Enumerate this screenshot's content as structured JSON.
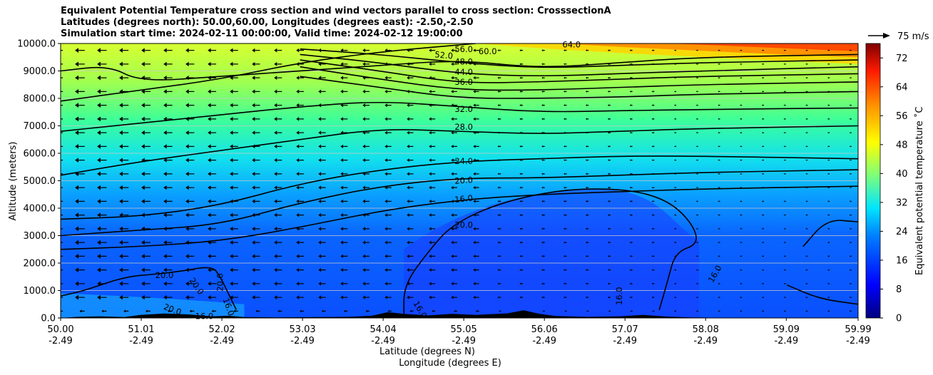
{
  "title_lines": [
    "Equivalent Potential Temperature cross section and wind vectors parallel to cross section: CrosssectionA",
    "Latitudes (degrees north): 50.00,60.00, Longitudes (degrees east): -2.50,-2.50",
    "Simulation start time: 2024-02-11 00:00:00, Valid time: 2024-02-12 19:00:00"
  ],
  "chart_data": {
    "type": "contourf",
    "ylabel": "Altitude (meters)",
    "xlabel_lines": [
      "Latitude (degrees N)",
      "Longitude (degrees E)"
    ],
    "xlim": [
      50.0,
      59.99
    ],
    "ylim": [
      0,
      10000
    ],
    "grid": "horizontal",
    "x_ticks": [
      {
        "lat": "50.00",
        "lon": "-2.49"
      },
      {
        "lat": "51.01",
        "lon": "-2.49"
      },
      {
        "lat": "52.02",
        "lon": "-2.49"
      },
      {
        "lat": "53.03",
        "lon": "-2.49"
      },
      {
        "lat": "54.04",
        "lon": "-2.49"
      },
      {
        "lat": "55.05",
        "lon": "-2.49"
      },
      {
        "lat": "56.06",
        "lon": "-2.49"
      },
      {
        "lat": "57.07",
        "lon": "-2.49"
      },
      {
        "lat": "58.08",
        "lon": "-2.49"
      },
      {
        "lat": "59.09",
        "lon": "-2.49"
      },
      {
        "lat": "59.99",
        "lon": "-2.49"
      }
    ],
    "y_ticks": [
      "0.0",
      "1000.0",
      "2000.0",
      "3000.0",
      "4000.0",
      "5000.0",
      "6000.0",
      "7000.0",
      "8000.0",
      "9000.0",
      "10000.0"
    ],
    "colorbar": {
      "label": "Equivalent potential temperature ˚C",
      "range": [
        0,
        76
      ],
      "ticks": [
        "0",
        "8",
        "16",
        "24",
        "32",
        "40",
        "48",
        "56",
        "64",
        "72"
      ]
    },
    "contour_labels": [
      "64.0",
      "56.0",
      "60.0",
      "52.0",
      "48.0",
      "44.0",
      "36.0",
      "32.0",
      "28.0",
      "24.0",
      "20.0",
      "16.0",
      "20.0",
      "20.0",
      "20.0",
      "20.0",
      "20.0",
      "16.0",
      "16.0",
      "16.0",
      "16.0",
      "16.0"
    ],
    "contour_levels": [
      16,
      20,
      24,
      28,
      32,
      36,
      40,
      44,
      48,
      52,
      56,
      60,
      64
    ],
    "wind_vector_key": "75 m/s",
    "wind_direction": "toward lower latitude (leftward), weakening toward north"
  },
  "colors": {
    "terrain": "#000000",
    "contour_line": "#000000"
  }
}
